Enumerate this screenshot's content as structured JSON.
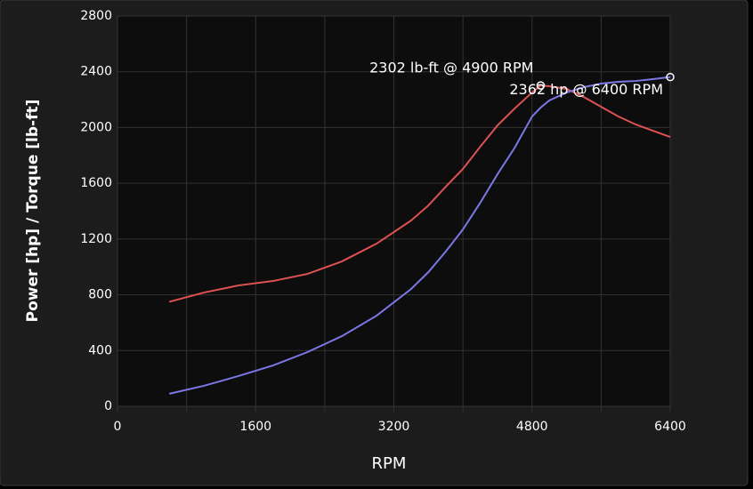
{
  "chart_data": {
    "type": "line",
    "x_label": "RPM",
    "y_label": "Power [hp] / Torque [lb-ft]",
    "x": [
      600,
      1000,
      1400,
      1800,
      2200,
      2600,
      3000,
      3400,
      3600,
      3800,
      4000,
      4200,
      4400,
      4600,
      4800,
      4900,
      5000,
      5200,
      5400,
      5600,
      5800,
      6000,
      6200,
      6400
    ],
    "series": [
      {
        "name": "Torque",
        "color": "#e05252",
        "values": [
          750,
          816,
          867,
          899,
          950,
          1040,
          1167,
          1333,
          1441,
          1575,
          1703,
          1862,
          2015,
          2137,
          2251,
          2302,
          2296,
          2277,
          2219,
          2149,
          2079,
          2022,
          1977,
          1932
        ]
      },
      {
        "name": "Power",
        "color": "#7b78e6",
        "values": [
          90,
          147,
          217,
          293,
          389,
          504,
          650,
          842,
          963,
          1110,
          1269,
          1460,
          1665,
          1856,
          2079,
          2143,
          2194,
          2251,
          2290,
          2315,
          2328,
          2334,
          2347,
          2362
        ]
      }
    ],
    "annotations": [
      {
        "text": "2302 lb-ft @ 4900 RPM",
        "series": 0,
        "x": 4900,
        "y": 2302
      },
      {
        "text": "2362 hp @ 6400 RPM",
        "series": 1,
        "x": 6400,
        "y": 2362
      }
    ],
    "xlim": [
      0,
      6400
    ],
    "xticks": [
      0,
      1600,
      3200,
      4800,
      6400
    ],
    "minor_grid": true,
    "ylim": [
      0,
      2800
    ],
    "yticks": [
      0,
      400,
      800,
      1200,
      1600,
      2000,
      2400,
      2800
    ],
    "grid": true
  }
}
